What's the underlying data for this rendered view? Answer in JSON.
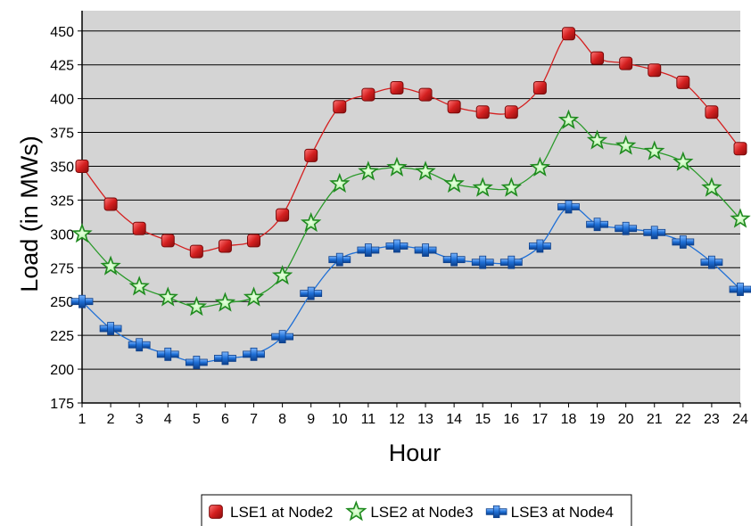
{
  "chart_data": {
    "type": "line",
    "xlabel": "Hour",
    "ylabel": "Load (in MWs)",
    "ylim": [
      175,
      450
    ],
    "yticks": [
      175,
      200,
      225,
      250,
      275,
      300,
      325,
      350,
      375,
      400,
      425,
      450
    ],
    "x": [
      1,
      2,
      3,
      4,
      5,
      6,
      7,
      8,
      9,
      10,
      11,
      12,
      13,
      14,
      15,
      16,
      17,
      18,
      19,
      20,
      21,
      22,
      23,
      24
    ],
    "grid": "horizontal",
    "legend_position": "bottom",
    "series": [
      {
        "name": "LSE1 at Node2",
        "color": "#d42020",
        "marker": "square",
        "values": [
          350,
          322,
          304,
          295,
          287,
          291,
          295,
          314,
          358,
          394,
          403,
          408,
          403,
          394,
          390,
          390,
          408,
          448,
          430,
          426,
          421,
          412,
          390,
          363
        ]
      },
      {
        "name": "LSE2 at Node3",
        "color": "#2a9a2a",
        "marker": "star",
        "values": [
          300,
          276,
          261,
          253,
          246,
          249,
          253,
          269,
          308,
          337,
          346,
          349,
          346,
          337,
          334,
          334,
          349,
          384,
          369,
          365,
          361,
          353,
          334,
          311
        ]
      },
      {
        "name": "LSE3 at Node4",
        "color": "#1e6fd6",
        "marker": "plus",
        "values": [
          250,
          230,
          218,
          211,
          205,
          208,
          211,
          224,
          256,
          281,
          288,
          291,
          288,
          281,
          279,
          279,
          291,
          320,
          307,
          304,
          301,
          294,
          279,
          259
        ]
      }
    ]
  }
}
